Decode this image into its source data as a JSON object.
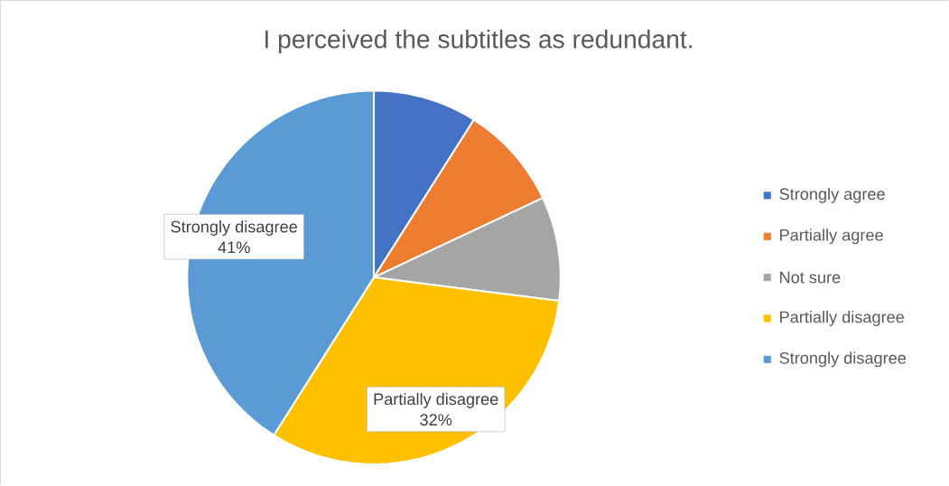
{
  "chart_data": {
    "type": "pie",
    "title": "I perceived the subtitles as redundant.",
    "categories": [
      "Strongly agree",
      "Partially agree",
      "Not sure",
      "Partially disagree",
      "Strongly disagree"
    ],
    "values": [
      9,
      9,
      9,
      32,
      41
    ],
    "colors": [
      "#4472c4",
      "#ed7d31",
      "#a5a5a5",
      "#ffc000",
      "#5b9bd5"
    ],
    "value_labels": [
      null,
      null,
      null,
      "32%",
      "41%"
    ],
    "legend": "right"
  }
}
